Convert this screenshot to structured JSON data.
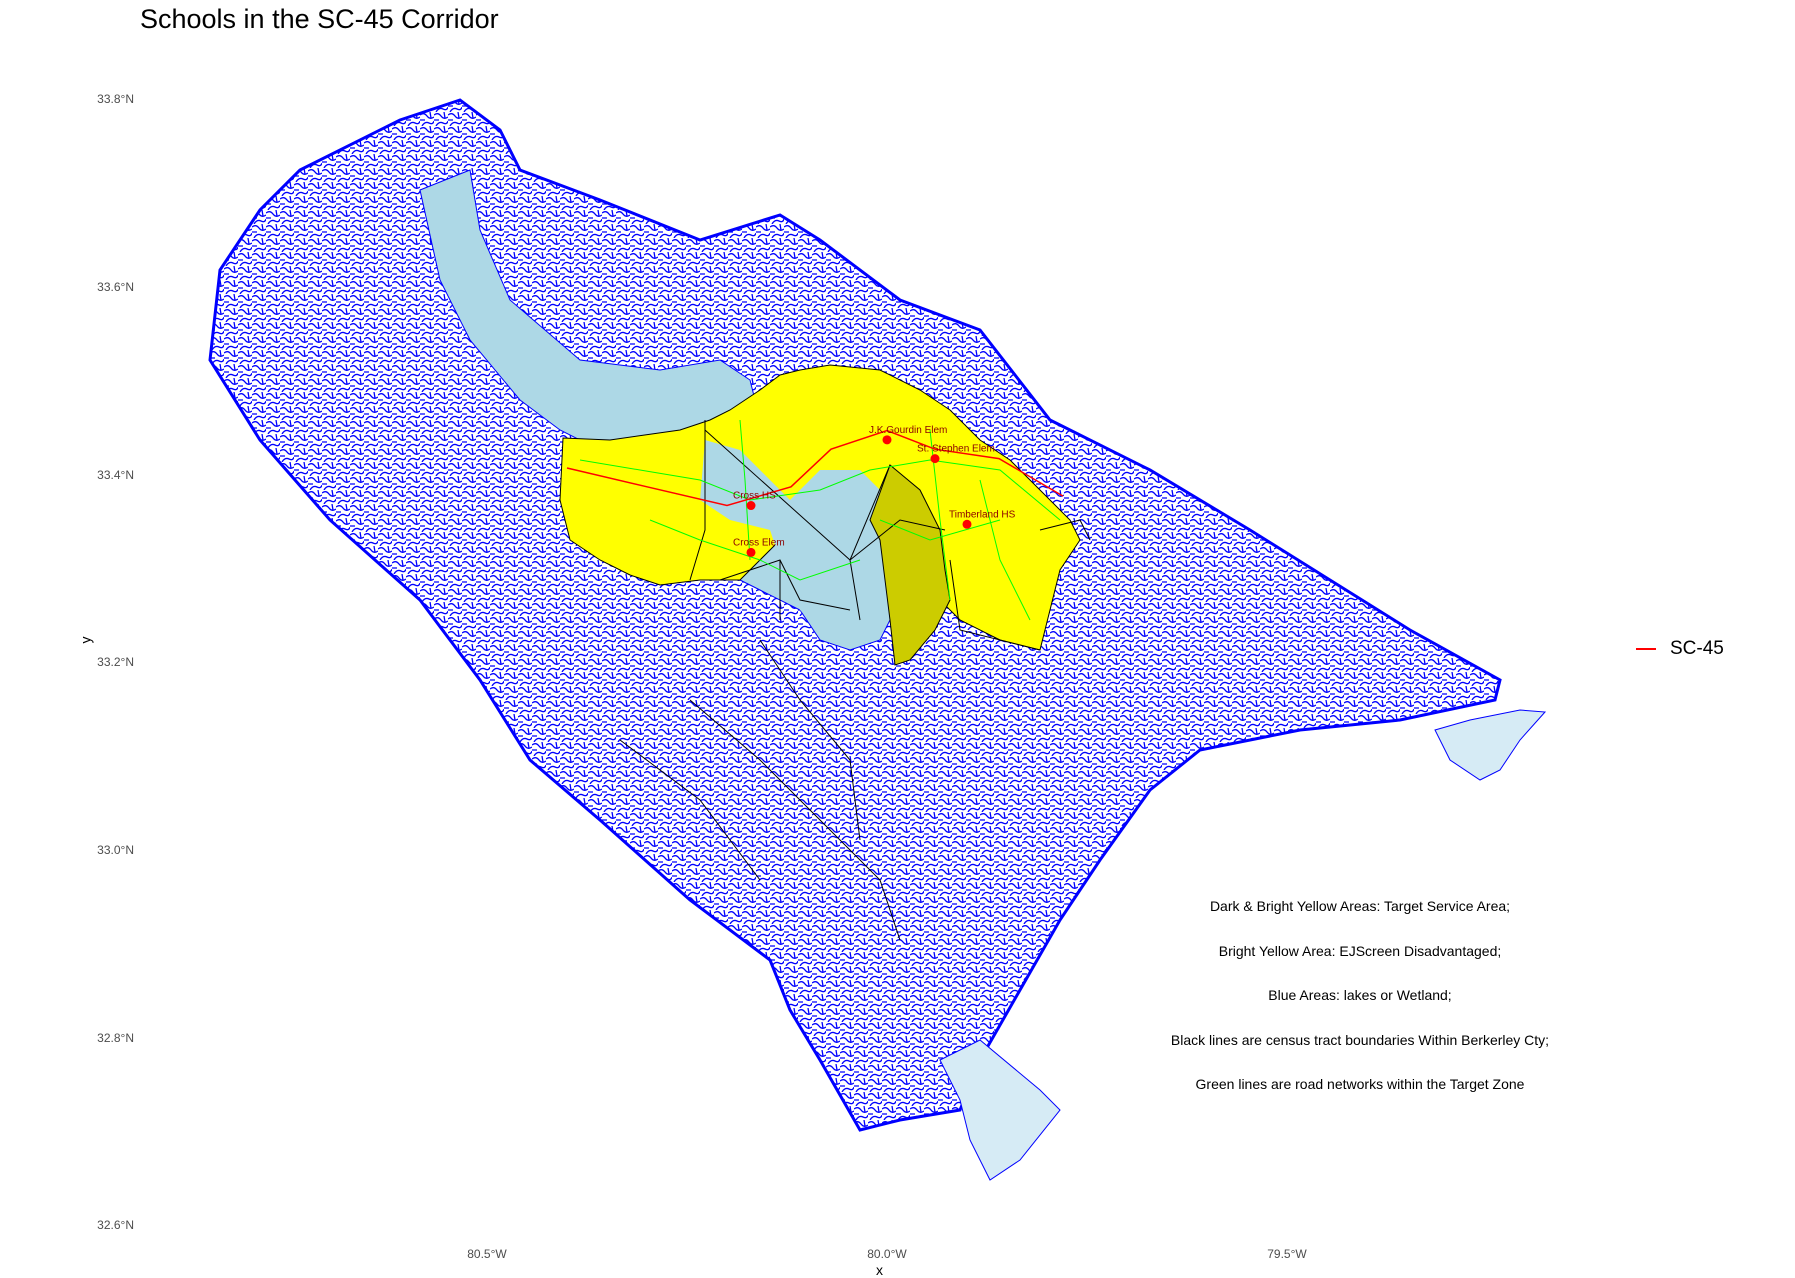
{
  "title": "Schools in the SC-45 Corridor",
  "axes": {
    "x_title": "x",
    "y_title": "y",
    "x_ticks": [
      {
        "value": -80.5,
        "label": "80.5°W"
      },
      {
        "value": -80.0,
        "label": "80.0°W"
      },
      {
        "value": -79.5,
        "label": "79.5°W"
      }
    ],
    "y_ticks": [
      {
        "value": 33.8,
        "label": "33.8°N"
      },
      {
        "value": 33.6,
        "label": "33.6°N"
      },
      {
        "value": 33.4,
        "label": "33.4°N"
      },
      {
        "value": 33.2,
        "label": "33.2°N"
      },
      {
        "value": 33.0,
        "label": "33.0°N"
      },
      {
        "value": 32.8,
        "label": "32.8°N"
      },
      {
        "value": 32.6,
        "label": "32.6°N"
      }
    ]
  },
  "legend": {
    "label": "SC-45",
    "color": "#ff0000"
  },
  "notes": [
    "Dark & Bright Yellow Areas: Target Service Area;",
    "Bright Yellow Area: EJScreen Disadvantaged;",
    "Blue Areas: lakes or Wetland;",
    "Black lines are census tract boundaries Within Berkerley Cty;",
    "Green lines are road networks within the Target Zone"
  ],
  "colors": {
    "water_lines": "#0000ff",
    "lakes": "#add8e6",
    "target_bright": "#ffff00",
    "target_dark": "#cccc00",
    "roads": "#00ff00",
    "tracts": "#000000",
    "schools": "#ff0000"
  },
  "schools": [
    {
      "name": "J.K.Gourdin Elem",
      "lon": -80.0,
      "lat": 33.43
    },
    {
      "name": "St. Stephen Elem",
      "lon": -79.94,
      "lat": 33.41
    },
    {
      "name": "Cross HS",
      "lon": -80.17,
      "lat": 33.36
    },
    {
      "name": "Cross Elem",
      "lon": -80.17,
      "lat": 33.31
    },
    {
      "name": "Timberland HS",
      "lon": -79.9,
      "lat": 33.34
    }
  ],
  "sc45_route": [
    [
      -80.4,
      33.4
    ],
    [
      -80.3,
      33.38
    ],
    [
      -80.2,
      33.36
    ],
    [
      -80.12,
      33.38
    ],
    [
      -80.07,
      33.42
    ],
    [
      -80.0,
      33.44
    ],
    [
      -79.94,
      33.42
    ],
    [
      -79.86,
      33.41
    ],
    [
      -79.78,
      33.37
    ]
  ]
}
